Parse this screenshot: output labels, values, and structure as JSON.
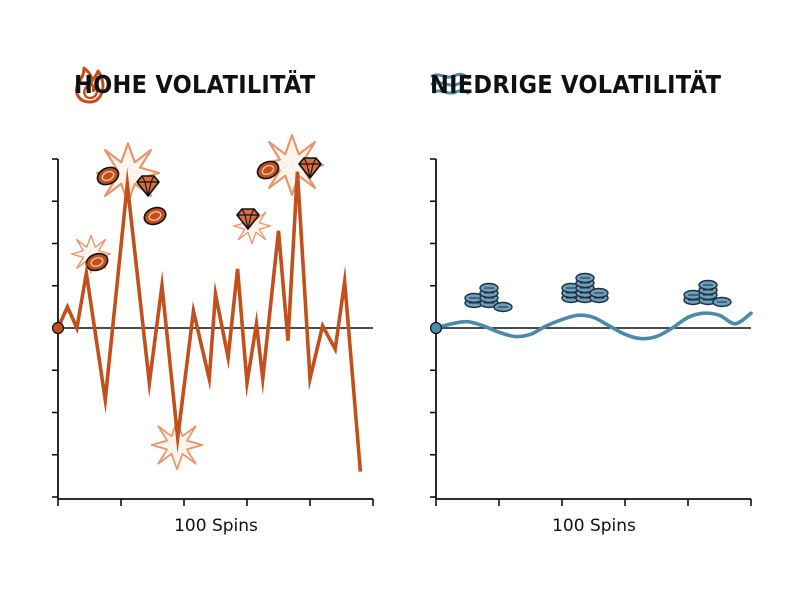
{
  "colors": {
    "high": "#c2501d",
    "high_deco": "#e8956a",
    "low": "#4a8bab",
    "coin_low": "#6d9fbf",
    "axis": "#111111"
  },
  "chart_data": [
    {
      "type": "line",
      "title": "HOHE VOLATILITÄT",
      "title_icon": "flame-icon",
      "xlabel": "100 Spins",
      "ylabel": "",
      "xlim": [
        0,
        100
      ],
      "ylim": [
        -4,
        4
      ],
      "grid": false,
      "series": [
        {
          "x": [
            0,
            3,
            6,
            9,
            15,
            22,
            29,
            33,
            38,
            43,
            48,
            50,
            54,
            57,
            60,
            63,
            65,
            70,
            73,
            76,
            80,
            84,
            88,
            91,
            96
          ],
          "values": [
            0,
            0.5,
            0,
            1.3,
            -1.7,
            3.4,
            -1.3,
            1.0,
            -2.6,
            0.4,
            -1.2,
            0.8,
            -0.7,
            1.4,
            -1.3,
            0.1,
            -1.2,
            2.3,
            -0.3,
            3.7,
            -1.2,
            0.05,
            -0.5,
            1.1,
            -3.4
          ]
        }
      ]
    },
    {
      "type": "line",
      "title": "NIEDRIGE VOLATILITÄT",
      "title_icon": "wind-icon",
      "xlabel": "100 Spins",
      "ylabel": "",
      "xlim": [
        0,
        100
      ],
      "ylim": [
        -4,
        4
      ],
      "grid": false,
      "series": [
        {
          "x": [
            0,
            5,
            10,
            15,
            20,
            25,
            30,
            35,
            40,
            45,
            50,
            55,
            60,
            65,
            70,
            75,
            80,
            85,
            90,
            95,
            100
          ],
          "values": [
            0,
            0.1,
            0.15,
            0.05,
            -0.1,
            -0.2,
            -0.15,
            0.05,
            0.2,
            0.3,
            0.25,
            0.05,
            -0.15,
            -0.25,
            -0.2,
            0.0,
            0.25,
            0.35,
            0.3,
            0.1,
            0.35
          ]
        }
      ]
    }
  ]
}
